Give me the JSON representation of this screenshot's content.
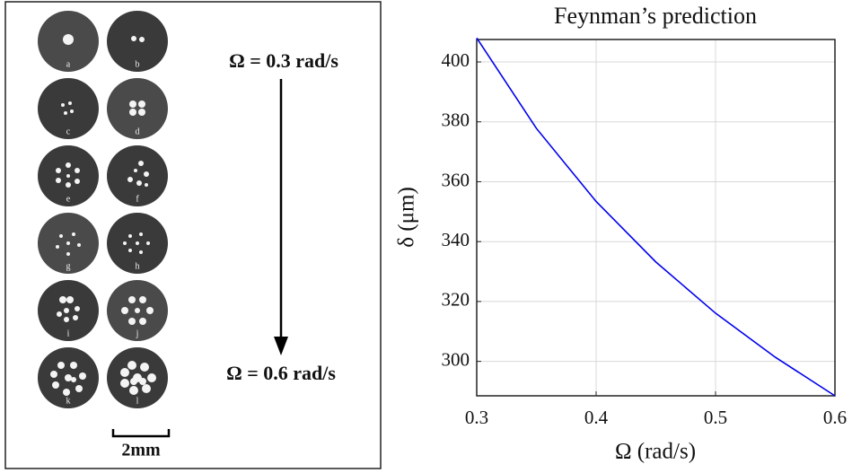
{
  "panel": {
    "labels": [
      "a",
      "b",
      "c",
      "d",
      "e",
      "f",
      "g",
      "h",
      "i",
      "j",
      "k",
      "l"
    ],
    "start_annotation": "Ω = 0.3 rad/s",
    "end_annotation": "Ω = 0.6 rad/s",
    "scale_bar": "2mm"
  },
  "chart_data": {
    "type": "line",
    "title": "Feynman’s prediction",
    "x_label": "Ω (rad/s)",
    "y_label": "δ (μm)",
    "x": [
      0.3,
      0.35,
      0.4,
      0.45,
      0.5,
      0.55,
      0.6
    ],
    "values": [
      408,
      377.8,
      353.4,
      333.2,
      316.1,
      301.4,
      288.5
    ],
    "color": "#0000ee",
    "xlim": [
      0.3,
      0.6
    ],
    "xticks": [
      0.3,
      0.4,
      0.5,
      0.6
    ],
    "ylim": [
      288.5,
      407.5
    ],
    "yticks": [
      300,
      320,
      340,
      360,
      380,
      400
    ],
    "grid": true
  }
}
